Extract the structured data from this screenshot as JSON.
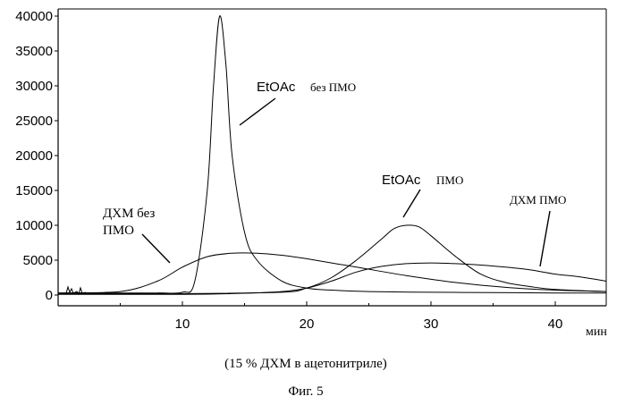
{
  "chart_data": {
    "type": "line",
    "xlabel": "мин",
    "ylabel": "",
    "xlim": [
      0,
      45
    ],
    "ylim": [
      0,
      40000
    ],
    "x_ticks": [
      "10",
      "20",
      "30",
      "40"
    ],
    "y_ticks": [
      "0",
      "5000",
      "10000",
      "15000",
      "20000",
      "25000",
      "30000",
      "35000",
      "40000"
    ],
    "grid": false,
    "series": [
      {
        "x": [
          0,
          5,
          8,
          10,
          11,
          12,
          12.5,
          13,
          13.5,
          14,
          15,
          16,
          18,
          20,
          22,
          25,
          30,
          35,
          40,
          45
        ],
        "y": [
          300,
          300,
          300,
          400,
          2000,
          15000,
          30000,
          40000,
          33000,
          20000,
          9000,
          5000,
          2000,
          1000,
          700,
          500,
          400,
          350,
          300,
          300
        ]
      },
      {
        "x": [
          0,
          5,
          8,
          10,
          12,
          14,
          16,
          18,
          20,
          24,
          28,
          32,
          36,
          40,
          45
        ],
        "y": [
          300,
          500,
          2000,
          4000,
          5500,
          6000,
          6000,
          5700,
          5200,
          4000,
          2800,
          1800,
          1100,
          700,
          500
        ]
      },
      {
        "x": [
          0,
          10,
          18,
          20,
          22,
          24,
          26,
          27,
          28,
          29,
          30,
          32,
          34,
          36,
          38,
          40,
          45
        ],
        "y": [
          200,
          200,
          400,
          1000,
          2500,
          5000,
          8000,
          9500,
          10000,
          9800,
          8500,
          5500,
          3000,
          1800,
          1200,
          800,
          500
        ]
      },
      {
        "x": [
          0,
          10,
          14,
          18,
          20,
          22,
          24,
          26,
          28,
          30,
          32,
          34,
          36,
          38,
          40,
          42,
          45
        ],
        "y": [
          100,
          100,
          200,
          500,
          1000,
          2000,
          3300,
          4100,
          4500,
          4600,
          4500,
          4300,
          4000,
          3600,
          3000,
          2600,
          2000
        ]
      }
    ],
    "annotations": [
      {
        "text_main": "EtOAc",
        "text_sub": "без ПМО"
      },
      {
        "text_main": "EtOAc",
        "text_sub": "ПМО"
      },
      {
        "line1": "ДХМ без",
        "line2": "ПМО"
      },
      {
        "text": "ДХМ ПМО"
      }
    ],
    "caption": "(15 % ДХМ в ацетонитриле)",
    "figure_label": "Фиг. 5"
  }
}
